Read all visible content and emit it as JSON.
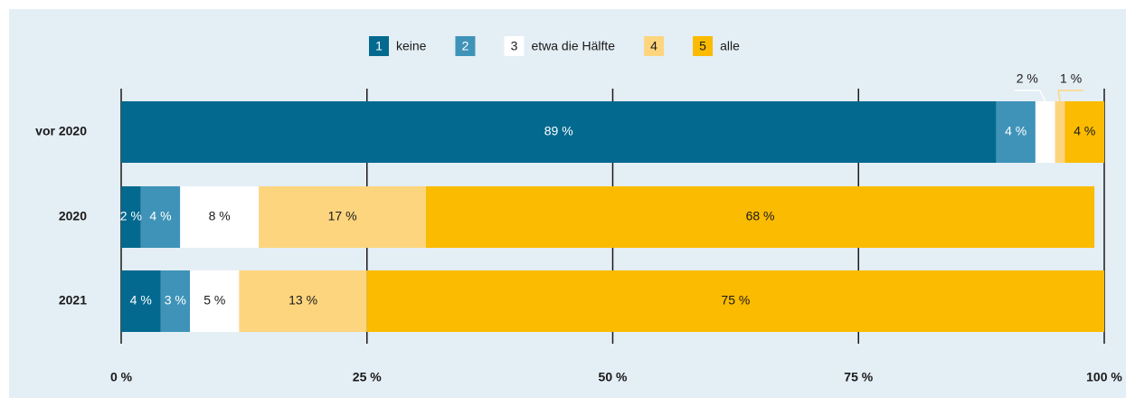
{
  "chart_data": {
    "type": "stacked-bar-horizontal",
    "categories": [
      "vor 2020",
      "2020",
      "2021"
    ],
    "series": [
      {
        "key": "1",
        "name": "keine",
        "color": "#03698f",
        "values": [
          89,
          2,
          4
        ],
        "value_labels": [
          "89 %",
          "2 %",
          "4 %"
        ]
      },
      {
        "key": "2",
        "color": "#3f93b8",
        "values": [
          4,
          4,
          3
        ],
        "value_labels": [
          "4 %",
          "4 %",
          "3 %"
        ]
      },
      {
        "key": "3",
        "name": "etwa die Hälfte",
        "color": "#ffffff",
        "values": [
          2,
          8,
          5
        ],
        "value_labels": [
          "2 %",
          "8 %",
          "5 %"
        ]
      },
      {
        "key": "4",
        "color": "#fdd57e",
        "values": [
          1,
          17,
          13
        ],
        "value_labels": [
          "1 %",
          "17 %",
          "13 %"
        ]
      },
      {
        "key": "5",
        "name": "alle",
        "color": "#fbbb00",
        "values": [
          4,
          68,
          75
        ],
        "value_labels": [
          "4 %",
          "68 %",
          "75 %"
        ]
      }
    ],
    "xlim": [
      0,
      100
    ],
    "xticks": [
      {
        "value": 0,
        "label": "0 %"
      },
      {
        "value": 25,
        "label": "25 %"
      },
      {
        "value": 50,
        "label": "50 %"
      },
      {
        "value": 75,
        "label": "75 %"
      },
      {
        "value": 100,
        "label": "100 %"
      }
    ],
    "grid": true,
    "legend": "top"
  }
}
